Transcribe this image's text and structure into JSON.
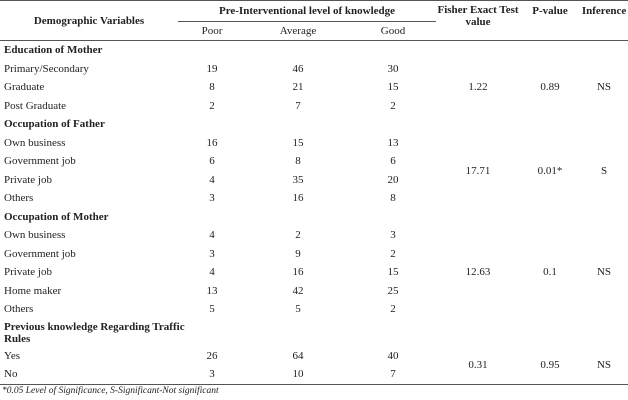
{
  "header": {
    "variables": "Demographic Variables",
    "group": "Pre-Interventional level of knowledge",
    "poor": "Poor",
    "average": "Average",
    "good": "Good",
    "fisher": "Fisher Exact Test value",
    "pvalue": "P-value",
    "inference": "Inference"
  },
  "sections": [
    {
      "title": "Education of Mother",
      "rows": [
        {
          "label": "Primary/Secondary",
          "poor": "19",
          "average": "46",
          "good": "30"
        },
        {
          "label": "Graduate",
          "poor": "8",
          "average": "21",
          "good": "15"
        },
        {
          "label": "Post Graduate",
          "poor": "2",
          "average": "7",
          "good": "2"
        }
      ],
      "fisher": "1.22",
      "pvalue": "0.89",
      "inference": "NS"
    },
    {
      "title": "Occupation of Father",
      "rows": [
        {
          "label": "Own business",
          "poor": "16",
          "average": "15",
          "good": "13"
        },
        {
          "label": "Government job",
          "poor": "6",
          "average": "8",
          "good": "6"
        },
        {
          "label": "Private job",
          "poor": "4",
          "average": "35",
          "good": "20"
        },
        {
          "label": "Others",
          "poor": "3",
          "average": "16",
          "good": "8"
        }
      ],
      "fisher": "17.71",
      "pvalue": "0.01*",
      "inference": "S"
    },
    {
      "title": "Occupation of Mother",
      "rows": [
        {
          "label": "Own business",
          "poor": "4",
          "average": "2",
          "good": "3"
        },
        {
          "label": "Government job",
          "poor": "3",
          "average": "9",
          "good": "2"
        },
        {
          "label": "Private job",
          "poor": "4",
          "average": "16",
          "good": "15"
        },
        {
          "label": "Home maker",
          "poor": "13",
          "average": "42",
          "good": "25"
        },
        {
          "label": "Others",
          "poor": "5",
          "average": "5",
          "good": "2"
        }
      ],
      "fisher": "12.63",
      "pvalue": "0.1",
      "inference": "NS"
    },
    {
      "title": "Previous knowledge Regarding Traffic Rules",
      "rows": [
        {
          "label": "Yes",
          "poor": "26",
          "average": "64",
          "good": "40"
        },
        {
          "label": "No",
          "poor": "3",
          "average": "10",
          "good": "7"
        }
      ],
      "fisher": "0.31",
      "pvalue": "0.95",
      "inference": "NS"
    }
  ],
  "footnote": "*0.05 Level of Significance, S-Significant-Not significant"
}
